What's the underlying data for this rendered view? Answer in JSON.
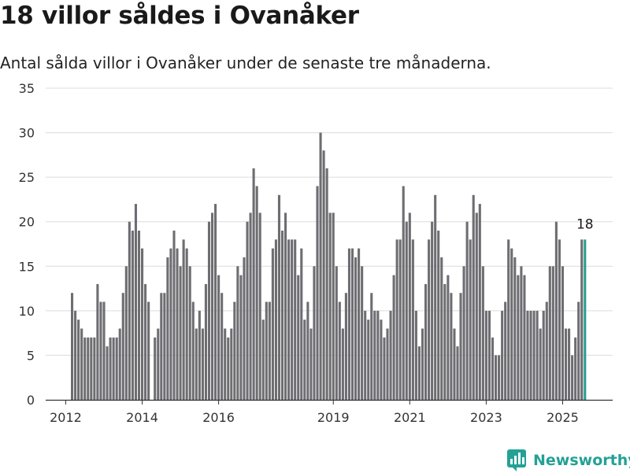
{
  "title": "18 villor såldes i Ovanåker",
  "subtitle": "Antal sålda villor i Ovanåker under de senaste tre månaderna.",
  "brand": "Newsworthy",
  "colors": {
    "bar": "#6e6d72",
    "highlight": "#2a9d94",
    "grid": "#dcdcdc",
    "axis": "#333333",
    "brand": "#23a195"
  },
  "chart_data": {
    "type": "bar",
    "start": "2012-03",
    "values": [
      12,
      10,
      9,
      8,
      7,
      7,
      7,
      7,
      13,
      11,
      11,
      6,
      7,
      7,
      7,
      8,
      12,
      15,
      20,
      19,
      22,
      19,
      17,
      13,
      11,
      0,
      7,
      8,
      12,
      12,
      16,
      17,
      19,
      17,
      15,
      18,
      17,
      15,
      11,
      8,
      10,
      8,
      13,
      20,
      21,
      22,
      14,
      12,
      8,
      7,
      8,
      11,
      15,
      14,
      16,
      20,
      21,
      26,
      24,
      21,
      9,
      11,
      11,
      17,
      18,
      23,
      19,
      21,
      18,
      18,
      18,
      14,
      17,
      9,
      11,
      8,
      15,
      24,
      30,
      28,
      26,
      21,
      21,
      15,
      11,
      8,
      12,
      17,
      17,
      16,
      17,
      15,
      10,
      9,
      12,
      10,
      10,
      9,
      7,
      8,
      10,
      14,
      18,
      18,
      24,
      20,
      21,
      18,
      10,
      6,
      8,
      13,
      18,
      20,
      23,
      19,
      16,
      13,
      14,
      12,
      8,
      6,
      12,
      15,
      20,
      18,
      23,
      21,
      22,
      15,
      10,
      10,
      7,
      5,
      5,
      10,
      11,
      18,
      17,
      16,
      14,
      15,
      14,
      10,
      10,
      10,
      10,
      8,
      10,
      11,
      15,
      15,
      20,
      18,
      15,
      8,
      8,
      5,
      7,
      11,
      18,
      18
    ],
    "highlight_last": true,
    "last_label": "18",
    "xticks": [
      {
        "label": "2012",
        "year": 2012
      },
      {
        "label": "2014",
        "year": 2014
      },
      {
        "label": "2016",
        "year": 2016
      },
      {
        "label": "2019",
        "year": 2019
      },
      {
        "label": "2021",
        "year": 2021
      },
      {
        "label": "2023",
        "year": 2023
      },
      {
        "label": "2025",
        "year": 2025
      }
    ],
    "yticks": [
      0,
      5,
      10,
      15,
      20,
      25,
      30,
      35
    ],
    "ylim": [
      0,
      35
    ],
    "xlabel": "",
    "ylabel": "",
    "grid": true,
    "legend": "none"
  }
}
